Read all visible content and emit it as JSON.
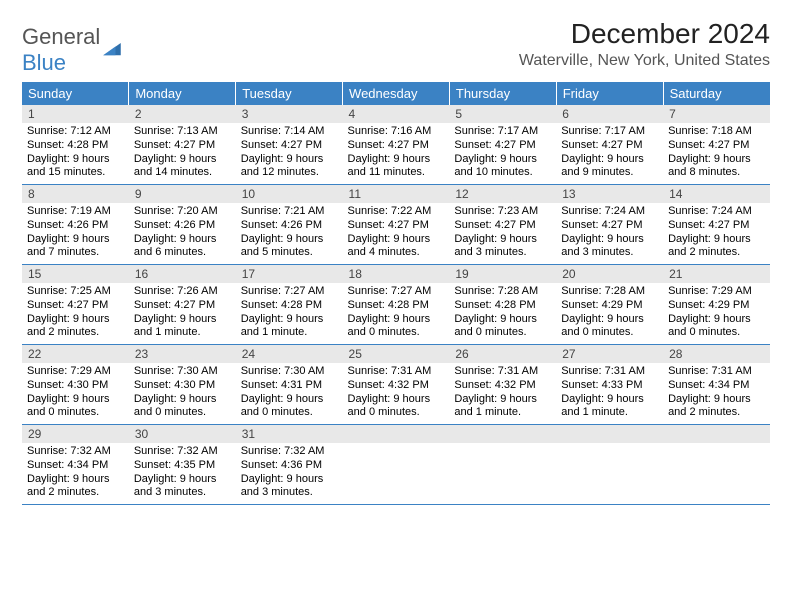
{
  "logo": {
    "part1": "General",
    "part2": "Blue"
  },
  "title": "December 2024",
  "location": "Waterville, New York, United States",
  "colors": {
    "header_bg": "#3b82c4",
    "header_fg": "#ffffff",
    "daynum_bg": "#e8e8e8",
    "row_border": "#3b82c4",
    "text": "#000000"
  },
  "fonts": {
    "title_size": 28,
    "location_size": 16,
    "dayhead_size": 13,
    "body_size": 11
  },
  "day_headers": [
    "Sunday",
    "Monday",
    "Tuesday",
    "Wednesday",
    "Thursday",
    "Friday",
    "Saturday"
  ],
  "weeks": [
    [
      {
        "n": "1",
        "sr": "Sunrise: 7:12 AM",
        "ss": "Sunset: 4:28 PM",
        "d1": "Daylight: 9 hours",
        "d2": "and 15 minutes."
      },
      {
        "n": "2",
        "sr": "Sunrise: 7:13 AM",
        "ss": "Sunset: 4:27 PM",
        "d1": "Daylight: 9 hours",
        "d2": "and 14 minutes."
      },
      {
        "n": "3",
        "sr": "Sunrise: 7:14 AM",
        "ss": "Sunset: 4:27 PM",
        "d1": "Daylight: 9 hours",
        "d2": "and 12 minutes."
      },
      {
        "n": "4",
        "sr": "Sunrise: 7:16 AM",
        "ss": "Sunset: 4:27 PM",
        "d1": "Daylight: 9 hours",
        "d2": "and 11 minutes."
      },
      {
        "n": "5",
        "sr": "Sunrise: 7:17 AM",
        "ss": "Sunset: 4:27 PM",
        "d1": "Daylight: 9 hours",
        "d2": "and 10 minutes."
      },
      {
        "n": "6",
        "sr": "Sunrise: 7:17 AM",
        "ss": "Sunset: 4:27 PM",
        "d1": "Daylight: 9 hours",
        "d2": "and 9 minutes."
      },
      {
        "n": "7",
        "sr": "Sunrise: 7:18 AM",
        "ss": "Sunset: 4:27 PM",
        "d1": "Daylight: 9 hours",
        "d2": "and 8 minutes."
      }
    ],
    [
      {
        "n": "8",
        "sr": "Sunrise: 7:19 AM",
        "ss": "Sunset: 4:26 PM",
        "d1": "Daylight: 9 hours",
        "d2": "and 7 minutes."
      },
      {
        "n": "9",
        "sr": "Sunrise: 7:20 AM",
        "ss": "Sunset: 4:26 PM",
        "d1": "Daylight: 9 hours",
        "d2": "and 6 minutes."
      },
      {
        "n": "10",
        "sr": "Sunrise: 7:21 AM",
        "ss": "Sunset: 4:26 PM",
        "d1": "Daylight: 9 hours",
        "d2": "and 5 minutes."
      },
      {
        "n": "11",
        "sr": "Sunrise: 7:22 AM",
        "ss": "Sunset: 4:27 PM",
        "d1": "Daylight: 9 hours",
        "d2": "and 4 minutes."
      },
      {
        "n": "12",
        "sr": "Sunrise: 7:23 AM",
        "ss": "Sunset: 4:27 PM",
        "d1": "Daylight: 9 hours",
        "d2": "and 3 minutes."
      },
      {
        "n": "13",
        "sr": "Sunrise: 7:24 AM",
        "ss": "Sunset: 4:27 PM",
        "d1": "Daylight: 9 hours",
        "d2": "and 3 minutes."
      },
      {
        "n": "14",
        "sr": "Sunrise: 7:24 AM",
        "ss": "Sunset: 4:27 PM",
        "d1": "Daylight: 9 hours",
        "d2": "and 2 minutes."
      }
    ],
    [
      {
        "n": "15",
        "sr": "Sunrise: 7:25 AM",
        "ss": "Sunset: 4:27 PM",
        "d1": "Daylight: 9 hours",
        "d2": "and 2 minutes."
      },
      {
        "n": "16",
        "sr": "Sunrise: 7:26 AM",
        "ss": "Sunset: 4:27 PM",
        "d1": "Daylight: 9 hours",
        "d2": "and 1 minute."
      },
      {
        "n": "17",
        "sr": "Sunrise: 7:27 AM",
        "ss": "Sunset: 4:28 PM",
        "d1": "Daylight: 9 hours",
        "d2": "and 1 minute."
      },
      {
        "n": "18",
        "sr": "Sunrise: 7:27 AM",
        "ss": "Sunset: 4:28 PM",
        "d1": "Daylight: 9 hours",
        "d2": "and 0 minutes."
      },
      {
        "n": "19",
        "sr": "Sunrise: 7:28 AM",
        "ss": "Sunset: 4:28 PM",
        "d1": "Daylight: 9 hours",
        "d2": "and 0 minutes."
      },
      {
        "n": "20",
        "sr": "Sunrise: 7:28 AM",
        "ss": "Sunset: 4:29 PM",
        "d1": "Daylight: 9 hours",
        "d2": "and 0 minutes."
      },
      {
        "n": "21",
        "sr": "Sunrise: 7:29 AM",
        "ss": "Sunset: 4:29 PM",
        "d1": "Daylight: 9 hours",
        "d2": "and 0 minutes."
      }
    ],
    [
      {
        "n": "22",
        "sr": "Sunrise: 7:29 AM",
        "ss": "Sunset: 4:30 PM",
        "d1": "Daylight: 9 hours",
        "d2": "and 0 minutes."
      },
      {
        "n": "23",
        "sr": "Sunrise: 7:30 AM",
        "ss": "Sunset: 4:30 PM",
        "d1": "Daylight: 9 hours",
        "d2": "and 0 minutes."
      },
      {
        "n": "24",
        "sr": "Sunrise: 7:30 AM",
        "ss": "Sunset: 4:31 PM",
        "d1": "Daylight: 9 hours",
        "d2": "and 0 minutes."
      },
      {
        "n": "25",
        "sr": "Sunrise: 7:31 AM",
        "ss": "Sunset: 4:32 PM",
        "d1": "Daylight: 9 hours",
        "d2": "and 0 minutes."
      },
      {
        "n": "26",
        "sr": "Sunrise: 7:31 AM",
        "ss": "Sunset: 4:32 PM",
        "d1": "Daylight: 9 hours",
        "d2": "and 1 minute."
      },
      {
        "n": "27",
        "sr": "Sunrise: 7:31 AM",
        "ss": "Sunset: 4:33 PM",
        "d1": "Daylight: 9 hours",
        "d2": "and 1 minute."
      },
      {
        "n": "28",
        "sr": "Sunrise: 7:31 AM",
        "ss": "Sunset: 4:34 PM",
        "d1": "Daylight: 9 hours",
        "d2": "and 2 minutes."
      }
    ],
    [
      {
        "n": "29",
        "sr": "Sunrise: 7:32 AM",
        "ss": "Sunset: 4:34 PM",
        "d1": "Daylight: 9 hours",
        "d2": "and 2 minutes."
      },
      {
        "n": "30",
        "sr": "Sunrise: 7:32 AM",
        "ss": "Sunset: 4:35 PM",
        "d1": "Daylight: 9 hours",
        "d2": "and 3 minutes."
      },
      {
        "n": "31",
        "sr": "Sunrise: 7:32 AM",
        "ss": "Sunset: 4:36 PM",
        "d1": "Daylight: 9 hours",
        "d2": "and 3 minutes."
      },
      null,
      null,
      null,
      null
    ]
  ]
}
